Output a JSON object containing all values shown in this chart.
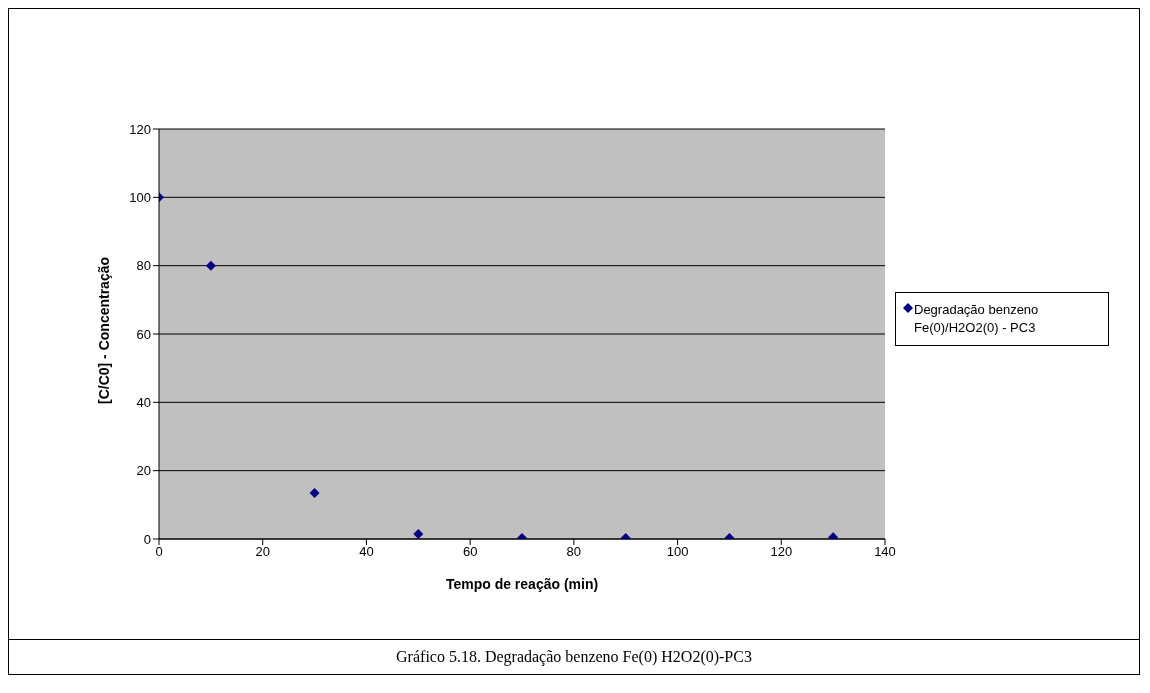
{
  "chart_data": {
    "type": "scatter",
    "xlabel": "Tempo de reação (min)",
    "ylabel": "[C/C0] - Concentração",
    "x": [
      0,
      10,
      30,
      50,
      70,
      90,
      110,
      130
    ],
    "series": [
      {
        "name": "Degradação benzeno Fe(0)/H2O2(0) - PC3",
        "color": "#000080",
        "values": [
          100,
          80,
          13.5,
          1.5,
          0.3,
          0.3,
          0.3,
          0.5
        ]
      }
    ],
    "xlim": [
      0,
      140
    ],
    "xticks": [
      0,
      20,
      40,
      60,
      80,
      100,
      120,
      140
    ],
    "ylim": [
      0,
      120
    ],
    "yticks": [
      0,
      20,
      40,
      60,
      80,
      100,
      120
    ],
    "grid": "y",
    "legend": "right",
    "marker": "diamond",
    "annotations": [
      "Gráfico 5.18. Degradação benzeno Fe(0) H2O2(0)-PC3"
    ]
  }
}
